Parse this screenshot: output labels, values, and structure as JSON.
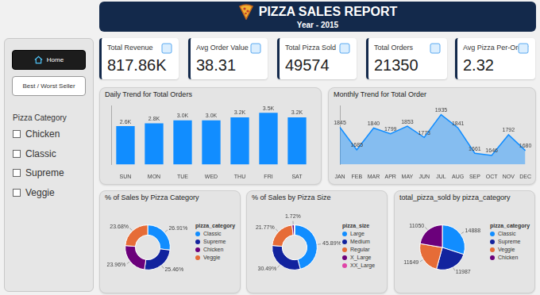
{
  "header": {
    "title": "PIZZA SALES REPORT",
    "subtitle": "Year - 2015"
  },
  "nav": [
    "Home",
    "Best / Worst Seller"
  ],
  "filter": {
    "title": "Pizza Category",
    "options": [
      "Chicken",
      "Classic",
      "Supreme",
      "Veggie"
    ]
  },
  "kpis": [
    {
      "label": "Total Revenue",
      "value": "817.86K"
    },
    {
      "label": "Avg Order Value",
      "value": "38.31"
    },
    {
      "label": "Total Pizza Sold",
      "value": "49574"
    },
    {
      "label": "Total Orders",
      "value": "21350"
    },
    {
      "label": "Avg Pizza Per-Order",
      "value": "2.32"
    }
  ],
  "chart_data": [
    {
      "type": "bar",
      "title": "Daily Trend for Total Orders",
      "categories": [
        "SUN",
        "MON",
        "TUE",
        "WED",
        "THU",
        "FRI",
        "SAT"
      ],
      "values": [
        2600,
        2800,
        3000,
        3000,
        3200,
        3500,
        3200
      ],
      "value_labels": [
        "2.6K",
        "2.8K",
        "3.0K",
        "3.0K",
        "3.2K",
        "3.5K",
        "3.2K"
      ],
      "color": "#118DFF",
      "ylim": [
        0,
        4000
      ],
      "data_labels": true,
      "tick_labels": "x",
      "grid": false
    },
    {
      "type": "area",
      "title": "Monthly Trend for Total Order",
      "categories": [
        "JAN",
        "FEB",
        "MAR",
        "APR",
        "MAY",
        "JUN",
        "JUL",
        "AUG",
        "SEP",
        "OCT",
        "NOV",
        "DEC"
      ],
      "values": [
        1845,
        1685,
        1840,
        1799,
        1853,
        1773,
        1935,
        1841,
        1661,
        1646,
        1792,
        1680
      ],
      "color": "#118DFF",
      "ylim": [
        1580,
        2000
      ],
      "data_labels": true,
      "tick_labels": "x",
      "grid": false
    },
    {
      "type": "donut",
      "title": "% of Sales by Pizza Category",
      "legend_title": "pizza_category",
      "categories": [
        "Classic",
        "Supreme",
        "Chicken",
        "Veggie"
      ],
      "values": [
        26.91,
        25.46,
        23.96,
        23.68
      ],
      "value_labels": [
        "26.91%",
        "25.46%",
        "23.96%",
        "23.68%"
      ],
      "colors": [
        "#118DFF",
        "#12239E",
        "#6B007B",
        "#E66C37"
      ],
      "legend": "right",
      "data_labels": true
    },
    {
      "type": "donut",
      "title": "% of Sales by Pizza Size",
      "legend_title": "pizza_size",
      "categories": [
        "Large",
        "Medium",
        "Regular",
        "X_Large",
        "XX_Large"
      ],
      "values": [
        45.89,
        30.49,
        21.77,
        1.72,
        0.12
      ],
      "value_labels": [
        "45.89%",
        "30.49%",
        "21.77%",
        "1.72%",
        null
      ],
      "colors": [
        "#118DFF",
        "#12239E",
        "#E66C37",
        "#6B007B",
        "#E044A7"
      ],
      "legend": "right",
      "data_labels": true
    },
    {
      "type": "pie",
      "title": "total_pizza_sold by pizza_category",
      "legend_title": "pizza_category",
      "categories": [
        "Classic",
        "Supreme",
        "Veggie",
        "Chicken"
      ],
      "values": [
        14888,
        11987,
        11649,
        11050
      ],
      "colors": [
        "#118DFF",
        "#12239E",
        "#E66C37",
        "#6B007B"
      ],
      "legend": "right",
      "data_labels": true
    }
  ]
}
